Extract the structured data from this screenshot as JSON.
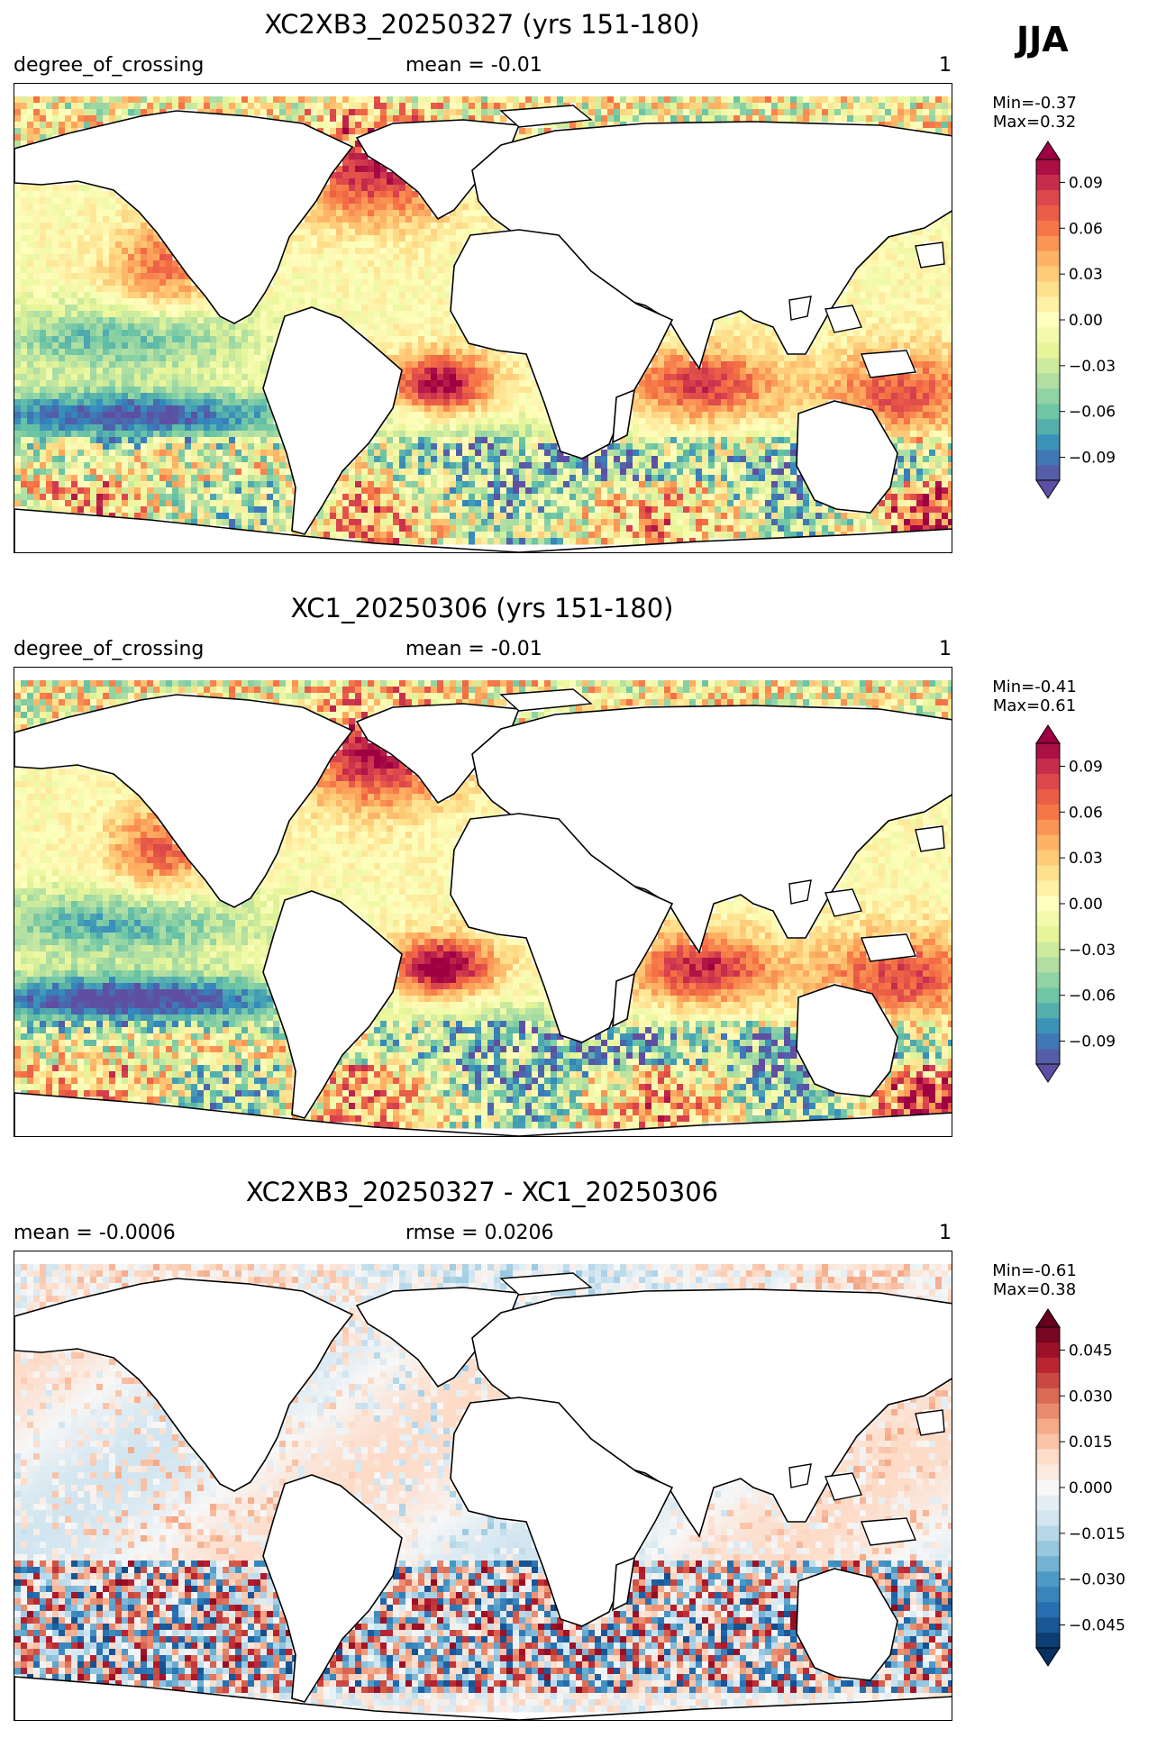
{
  "season": "JJA",
  "panels": [
    {
      "title": "XC2XB3_20250327 (yrs 151-180)",
      "left_label": "degree_of_crossing",
      "center_label": "mean = -0.01",
      "right_label": "1",
      "min_label": "Min=-0.37",
      "max_label": "Max=0.32",
      "colormap": "Spectral_r",
      "colorbar": {
        "range": [
          -0.105,
          0.105
        ],
        "ticks": [
          "0.09",
          "0.06",
          "0.03",
          "0.00",
          "−0.03",
          "−0.06",
          "−0.09"
        ],
        "tick_values": [
          0.09,
          0.06,
          0.03,
          0.0,
          -0.03,
          -0.06,
          -0.09
        ],
        "levels": 21
      }
    },
    {
      "title": "XC1_20250306 (yrs 151-180)",
      "left_label": "degree_of_crossing",
      "center_label": "mean = -0.01",
      "right_label": "1",
      "min_label": "Min=-0.41",
      "max_label": "Max=0.61",
      "colormap": "Spectral_r",
      "colorbar": {
        "range": [
          -0.105,
          0.105
        ],
        "ticks": [
          "0.09",
          "0.06",
          "0.03",
          "0.00",
          "−0.03",
          "−0.06",
          "−0.09"
        ],
        "tick_values": [
          0.09,
          0.06,
          0.03,
          0.0,
          -0.03,
          -0.06,
          -0.09
        ],
        "levels": 21
      }
    },
    {
      "title": "XC2XB3_20250327 - XC1_20250306",
      "left_label": "mean = -0.0006",
      "center_label": "rmse = 0.0206",
      "right_label": "1",
      "min_label": "Min=-0.61",
      "max_label": "Max=0.38",
      "colormap": "RdBu_r",
      "colorbar": {
        "range": [
          -0.0525,
          0.0525
        ],
        "ticks": [
          "0.045",
          "0.030",
          "0.015",
          "0.000",
          "−0.015",
          "−0.030",
          "−0.045"
        ],
        "tick_values": [
          0.045,
          0.03,
          0.015,
          0.0,
          -0.015,
          -0.03,
          -0.045
        ],
        "levels": 21
      }
    }
  ],
  "colors": {
    "spectral": [
      "#5e4fa2",
      "#3288bd",
      "#66c2a5",
      "#abdda4",
      "#e6f598",
      "#ffffbf",
      "#fee08b",
      "#fdae61",
      "#f46d43",
      "#d53e4f",
      "#9e0142"
    ],
    "rdbu": [
      "#053061",
      "#2166ac",
      "#4393c3",
      "#92c5de",
      "#d1e5f0",
      "#f7f7f7",
      "#fddbc7",
      "#f4a582",
      "#d6604d",
      "#b2182b",
      "#67001f"
    ]
  }
}
